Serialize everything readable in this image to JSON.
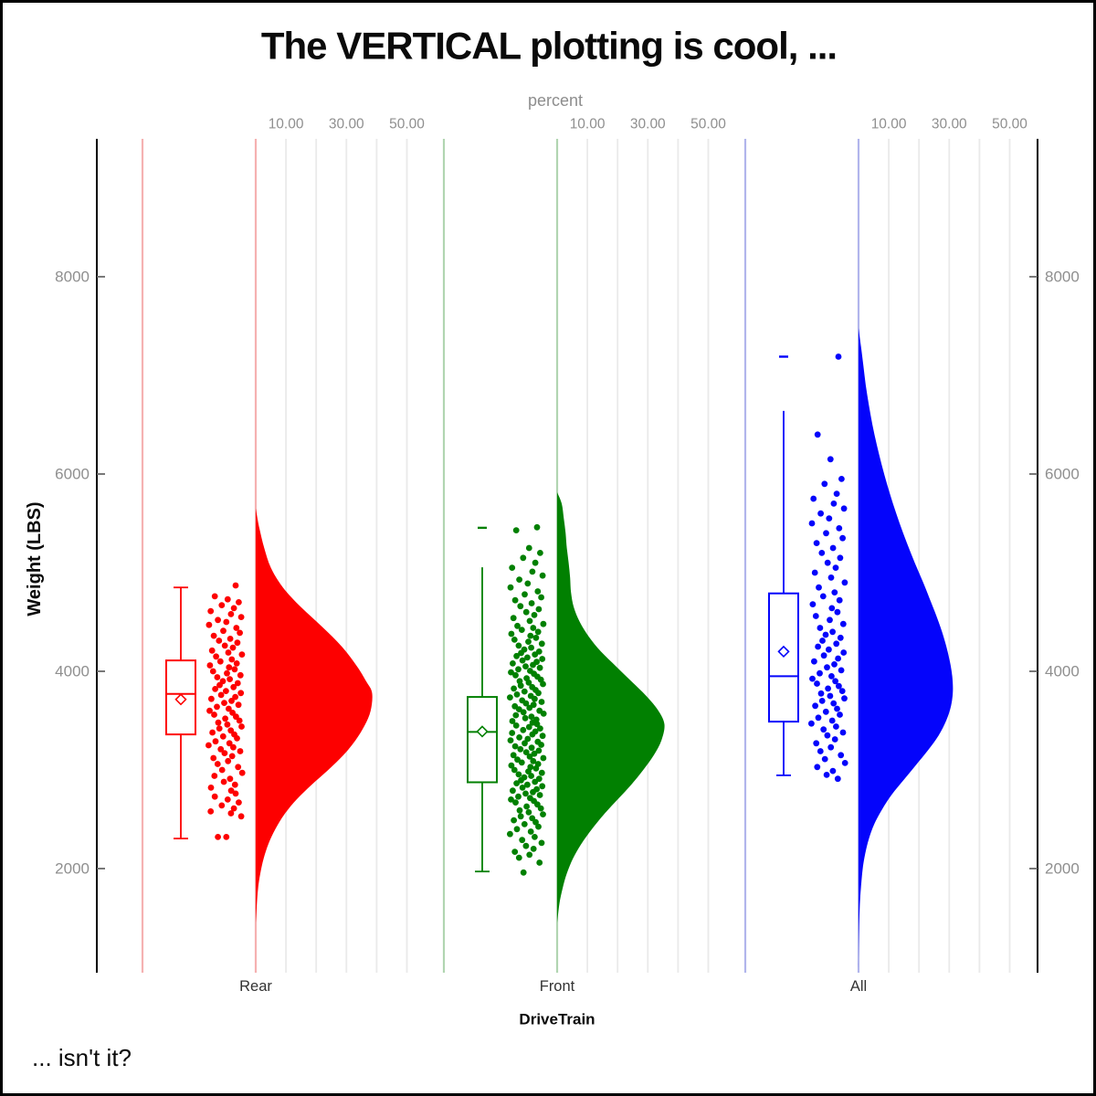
{
  "title": "The VERTICAL plotting is cool, ...",
  "footnote": "... isn't it?",
  "top_axis": {
    "label": "percent",
    "ticks": [
      10,
      30,
      50
    ],
    "tick_labels": [
      "10.00",
      "30.00",
      "50.00"
    ]
  },
  "left_axis": {
    "label": "Weight (LBS)",
    "ticks": [
      2000,
      4000,
      6000,
      8000
    ],
    "tick_labels": [
      "2000",
      "4000",
      "6000",
      "8000"
    ]
  },
  "right_axis": {
    "ticks": [
      2000,
      4000,
      6000,
      8000
    ],
    "tick_labels": [
      "2000",
      "4000",
      "6000",
      "8000"
    ]
  },
  "bottom_axis": {
    "label": "DriveTrain",
    "categories": [
      "Rear",
      "Front",
      "All"
    ]
  },
  "colors": {
    "grid": "#eaeaea",
    "axis_line": "#000000",
    "tick_mark": "#6a6a6a",
    "tick_label": "#8f8f8f",
    "axis_title_gray": "#8d8d8d",
    "category_label": "#333333",
    "title_color": "#0a0a0a"
  },
  "chart_data": {
    "type": "raincloud (vertical half-violin + box plot + jittered strip)",
    "ylabel": "Weight (LBS)",
    "xlabel": "DriveTrain",
    "percent_axis_label": "percent",
    "percent_ticks": [
      10,
      30,
      50
    ],
    "weight_axis_ticks": [
      2000,
      4000,
      6000,
      8000
    ],
    "jitter_pattern": [
      0.58,
      -0.62,
      0.12,
      0.76,
      -0.22,
      0.48,
      -0.86,
      0.31,
      0.9,
      -0.44,
      0.04,
      -0.95,
      0.62,
      -0.13,
      0.82,
      -0.68,
      0.27,
      -0.38,
      0.68,
      -0.04,
      0.42,
      -0.78,
      0.16,
      0.94,
      -0.55,
      0.36,
      -0.3,
      0.64,
      -0.9,
      0.2,
      0.52,
      -0.72,
      0.08,
      0.86,
      -0.48,
      0.24,
      -0.16,
      0.7,
      -0.34,
      0.46,
      -0.6,
      0.02,
      0.88,
      -0.26,
      0.56,
      -0.82,
      0.34,
      -0.08,
      0.74,
      -0.5,
      0.18,
      -0.92,
      0.4,
      -0.66,
      0.6,
      -0.02,
      0.8,
      -0.42,
      0.1,
      0.92,
      -0.36,
      0.3,
      -0.76,
      0.5,
      -0.14,
      0.66,
      -0.58,
      0.22,
      -0.98,
      0.44,
      -0.28,
      0.84,
      -0.06,
      0.38,
      -0.7,
      0.14,
      -0.46,
      0.72,
      -0.2,
      0.96,
      -0.64,
      0.26,
      -0.1,
      0.54,
      -0.84,
      0.32
    ],
    "groups": [
      {
        "name": "Rear",
        "color": "#fd0000",
        "light_color": "#f5b1b1",
        "box": {
          "mean": 3715,
          "median": 3770,
          "q1": 3360,
          "q3": 4110,
          "whisker_low": 2305,
          "whisker_high": 4850,
          "cap_low": true,
          "cap_high": true
        },
        "outlier_dashes": [],
        "violin_profile": [
          [
            5650,
            0
          ],
          [
            5450,
            1.2
          ],
          [
            5250,
            2.8
          ],
          [
            5050,
            5
          ],
          [
            4850,
            9
          ],
          [
            4650,
            15
          ],
          [
            4450,
            22
          ],
          [
            4250,
            28.5
          ],
          [
            4050,
            33.5
          ],
          [
            3900,
            36.5
          ],
          [
            3780,
            38.5
          ],
          [
            3600,
            38
          ],
          [
            3450,
            36
          ],
          [
            3300,
            33
          ],
          [
            3150,
            29
          ],
          [
            3000,
            24
          ],
          [
            2850,
            18.5
          ],
          [
            2700,
            13.5
          ],
          [
            2550,
            9.5
          ],
          [
            2400,
            6.5
          ],
          [
            2250,
            4.2
          ],
          [
            2100,
            2.6
          ],
          [
            1950,
            1.5
          ],
          [
            1800,
            0.8
          ],
          [
            1600,
            0.3
          ],
          [
            1450,
            0
          ]
        ],
        "points": [
          4870,
          4760,
          4730,
          4700,
          4670,
          4640,
          4610,
          4580,
          4550,
          4520,
          4500,
          4470,
          4440,
          4410,
          4390,
          4360,
          4330,
          4310,
          4290,
          4260,
          4240,
          4210,
          4190,
          4170,
          4150,
          4120,
          4100,
          4080,
          4060,
          4040,
          4020,
          4000,
          3980,
          3960,
          3940,
          3920,
          3900,
          3880,
          3860,
          3840,
          3820,
          3800,
          3780,
          3760,
          3740,
          3720,
          3700,
          3680,
          3660,
          3640,
          3620,
          3600,
          3580,
          3560,
          3540,
          3520,
          3500,
          3480,
          3460,
          3440,
          3420,
          3400,
          3380,
          3360,
          3340,
          3320,
          3290,
          3270,
          3250,
          3230,
          3210,
          3190,
          3170,
          3140,
          3120,
          3090,
          3060,
          3030,
          3000,
          2970,
          2940,
          2910,
          2880,
          2850,
          2820,
          2790,
          2760,
          2730,
          2700,
          2670,
          2640,
          2610,
          2580,
          2560,
          2530,
          2320,
          2320
        ]
      },
      {
        "name": "Front",
        "color": "#018001",
        "light_color": "#b1d5b1",
        "box": {
          "mean": 3390,
          "median": 3385,
          "q1": 2875,
          "q3": 3740,
          "whisker_low": 1970,
          "whisker_high": 5055,
          "cap_low": true,
          "cap_high": false
        },
        "outlier_dashes": [
          5455
        ],
        "violin_profile": [
          [
            5815,
            0
          ],
          [
            5700,
            1.5
          ],
          [
            5550,
            2.2
          ],
          [
            5400,
            2.8
          ],
          [
            5250,
            3.2
          ],
          [
            5100,
            3.8
          ],
          [
            4950,
            4.3
          ],
          [
            4800,
            4.6
          ],
          [
            4650,
            5.5
          ],
          [
            4500,
            7.5
          ],
          [
            4350,
            10.5
          ],
          [
            4200,
            14.5
          ],
          [
            4050,
            19.5
          ],
          [
            3900,
            24.5
          ],
          [
            3750,
            29.5
          ],
          [
            3600,
            33.5
          ],
          [
            3460,
            35.5
          ],
          [
            3300,
            34.5
          ],
          [
            3150,
            32
          ],
          [
            3000,
            28.5
          ],
          [
            2850,
            24.5
          ],
          [
            2700,
            20
          ],
          [
            2550,
            15.5
          ],
          [
            2400,
            11.5
          ],
          [
            2250,
            8
          ],
          [
            2100,
            5.2
          ],
          [
            1950,
            3.2
          ],
          [
            1800,
            1.8
          ],
          [
            1650,
            0.8
          ],
          [
            1450,
            0
          ]
        ],
        "points": [
          5460,
          5430,
          5250,
          5200,
          5150,
          5100,
          5050,
          5010,
          4970,
          4930,
          4890,
          4850,
          4810,
          4780,
          4750,
          4720,
          4690,
          4660,
          4630,
          4600,
          4570,
          4540,
          4510,
          4480,
          4460,
          4440,
          4420,
          4400,
          4380,
          4360,
          4340,
          4320,
          4300,
          4280,
          4260,
          4240,
          4220,
          4200,
          4185,
          4170,
          4155,
          4140,
          4125,
          4110,
          4095,
          4080,
          4065,
          4050,
          4035,
          4020,
          4005,
          3990,
          3975,
          3960,
          3945,
          3930,
          3915,
          3900,
          3885,
          3870,
          3855,
          3840,
          3825,
          3810,
          3795,
          3780,
          3765,
          3750,
          3735,
          3720,
          3705,
          3690,
          3675,
          3660,
          3645,
          3630,
          3615,
          3600,
          3585,
          3570,
          3555,
          3540,
          3525,
          3510,
          3495,
          3480,
          3465,
          3450,
          3435,
          3420,
          3405,
          3390,
          3375,
          3360,
          3345,
          3330,
          3315,
          3300,
          3285,
          3270,
          3255,
          3240,
          3225,
          3210,
          3195,
          3180,
          3165,
          3150,
          3135,
          3120,
          3105,
          3090,
          3075,
          3060,
          3045,
          3030,
          3015,
          3000,
          2985,
          2970,
          2955,
          2940,
          2925,
          2910,
          2895,
          2880,
          2865,
          2850,
          2835,
          2820,
          2805,
          2790,
          2775,
          2760,
          2745,
          2730,
          2715,
          2700,
          2685,
          2670,
          2650,
          2630,
          2610,
          2590,
          2570,
          2550,
          2530,
          2510,
          2490,
          2470,
          2450,
          2425,
          2400,
          2375,
          2350,
          2320,
          2290,
          2260,
          2230,
          2200,
          2170,
          2140,
          2110,
          2060,
          1960
        ]
      },
      {
        "name": "All",
        "color": "#0404fb",
        "light_color": "#b1b5ec",
        "box": {
          "mean": 4200,
          "median": 3950,
          "q1": 3490,
          "q3": 4790,
          "whisker_low": 2945,
          "whisker_high": 6640,
          "cap_low": true,
          "cap_high": false
        },
        "outlier_dashes": [
          7190
        ],
        "violin_profile": [
          [
            7480,
            0
          ],
          [
            7300,
            0.8
          ],
          [
            7100,
            1.6
          ],
          [
            6900,
            2.4
          ],
          [
            6700,
            3.4
          ],
          [
            6500,
            4.6
          ],
          [
            6300,
            6
          ],
          [
            6100,
            7.6
          ],
          [
            5900,
            9.4
          ],
          [
            5700,
            11.4
          ],
          [
            5500,
            13.6
          ],
          [
            5300,
            16
          ],
          [
            5100,
            18.6
          ],
          [
            4900,
            21.4
          ],
          [
            4700,
            24
          ],
          [
            4500,
            26.5
          ],
          [
            4300,
            28.6
          ],
          [
            4100,
            30.2
          ],
          [
            3950,
            31
          ],
          [
            3800,
            31.2
          ],
          [
            3650,
            30.6
          ],
          [
            3500,
            29
          ],
          [
            3350,
            26.5
          ],
          [
            3200,
            23
          ],
          [
            3050,
            19
          ],
          [
            2900,
            15
          ],
          [
            2750,
            11
          ],
          [
            2600,
            7.8
          ],
          [
            2450,
            5.2
          ],
          [
            2300,
            3.4
          ],
          [
            2150,
            2.2
          ],
          [
            2000,
            1.4
          ],
          [
            1800,
            0.8
          ],
          [
            1600,
            0.4
          ],
          [
            1300,
            0.1
          ],
          [
            1000,
            0
          ]
        ],
        "points": [
          7190,
          6400,
          6150,
          5950,
          5900,
          5800,
          5750,
          5700,
          5650,
          5600,
          5550,
          5500,
          5450,
          5400,
          5350,
          5300,
          5250,
          5200,
          5150,
          5100,
          5050,
          5000,
          4950,
          4900,
          4850,
          4800,
          4760,
          4720,
          4680,
          4640,
          4600,
          4560,
          4520,
          4480,
          4440,
          4400,
          4370,
          4340,
          4310,
          4280,
          4250,
          4220,
          4190,
          4160,
          4130,
          4100,
          4070,
          4040,
          4010,
          3980,
          3950,
          3925,
          3900,
          3875,
          3850,
          3825,
          3800,
          3775,
          3750,
          3725,
          3700,
          3675,
          3650,
          3620,
          3590,
          3560,
          3530,
          3500,
          3470,
          3440,
          3410,
          3380,
          3350,
          3310,
          3270,
          3230,
          3190,
          3150,
          3110,
          3070,
          3030,
          2990,
          2950,
          2910
        ]
      }
    ]
  }
}
